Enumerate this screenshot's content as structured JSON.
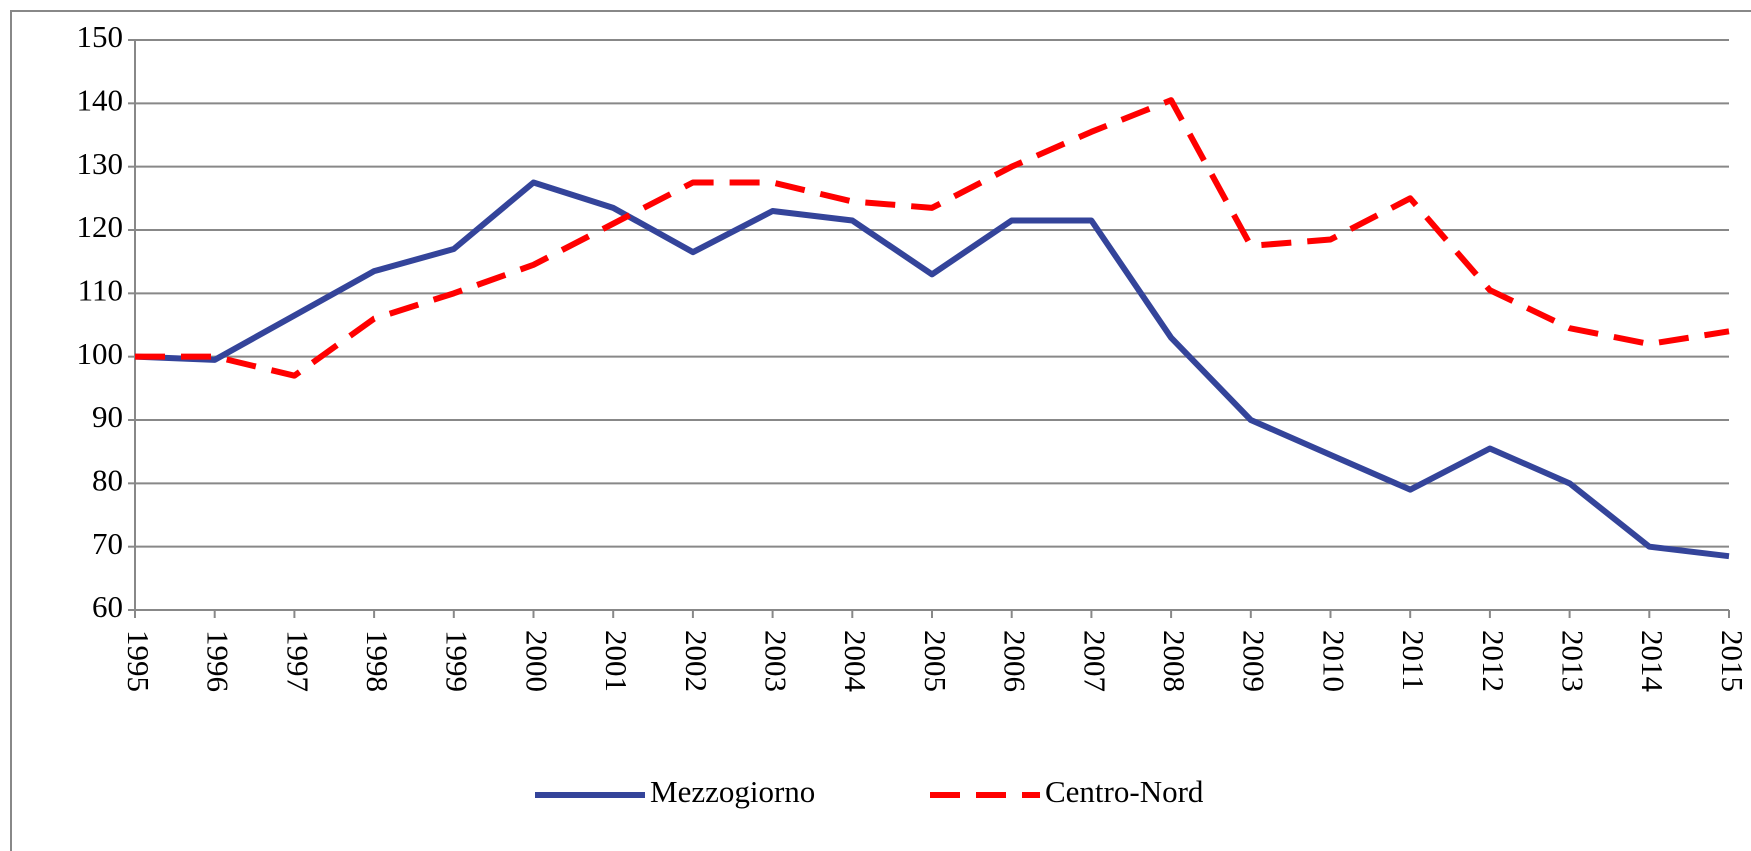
{
  "chart_data": {
    "type": "line",
    "categories": [
      "1995",
      "1996",
      "1997",
      "1998",
      "1999",
      "2000",
      "2001",
      "2002",
      "2003",
      "2004",
      "2005",
      "2006",
      "2007",
      "2008",
      "2009",
      "2010",
      "2011",
      "2012",
      "2013",
      "2014",
      "2015"
    ],
    "series": [
      {
        "name": "Mezzogiorno",
        "color": "#34449a",
        "dashed": false,
        "values": [
          100,
          99.5,
          106.5,
          113.5,
          117,
          127.5,
          123.5,
          116.5,
          123,
          121.5,
          113,
          121.5,
          121.5,
          103,
          90,
          84.5,
          79,
          85.5,
          80,
          70,
          68.5
        ]
      },
      {
        "name": "Centro-Nord",
        "color": "#ff0000",
        "dashed": true,
        "values": [
          100,
          100,
          97,
          106,
          110,
          114.5,
          121,
          127.5,
          127.5,
          124.5,
          123.5,
          130,
          135.5,
          140.5,
          117.5,
          118.5,
          125,
          110.5,
          104.5,
          102,
          104
        ]
      }
    ],
    "ylim": [
      60,
      150
    ],
    "yticks": [
      60,
      70,
      80,
      90,
      100,
      110,
      120,
      130,
      140,
      150
    ],
    "grid": true
  }
}
